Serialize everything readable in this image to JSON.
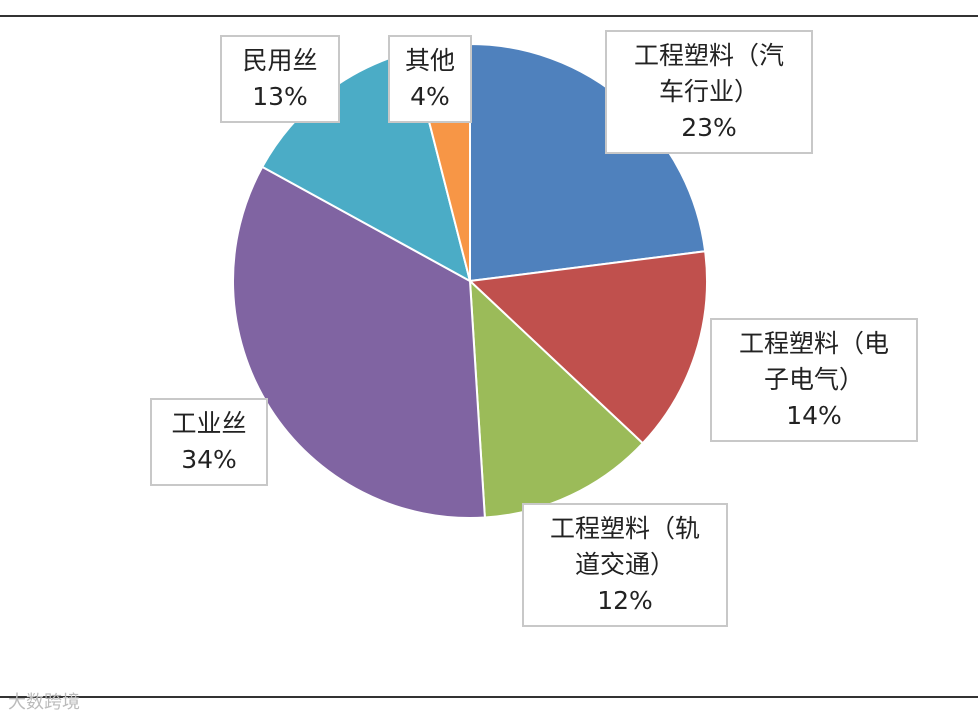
{
  "chart_data": {
    "type": "pie",
    "categories": [
      "工程塑料（汽车行业）",
      "工程塑料（电子电气）",
      "工程塑料（轨道交通）",
      "工业丝",
      "民用丝",
      "其他"
    ],
    "values": [
      23,
      14,
      12,
      34,
      13,
      4
    ],
    "value_labels": [
      "23%",
      "14%",
      "12%",
      "34%",
      "13%",
      "4%"
    ],
    "colors": [
      "#4f81bd",
      "#c0504d",
      "#9bbb59",
      "#8064a2",
      "#4bacc6",
      "#f79646"
    ]
  },
  "watermark": "大数跨境"
}
